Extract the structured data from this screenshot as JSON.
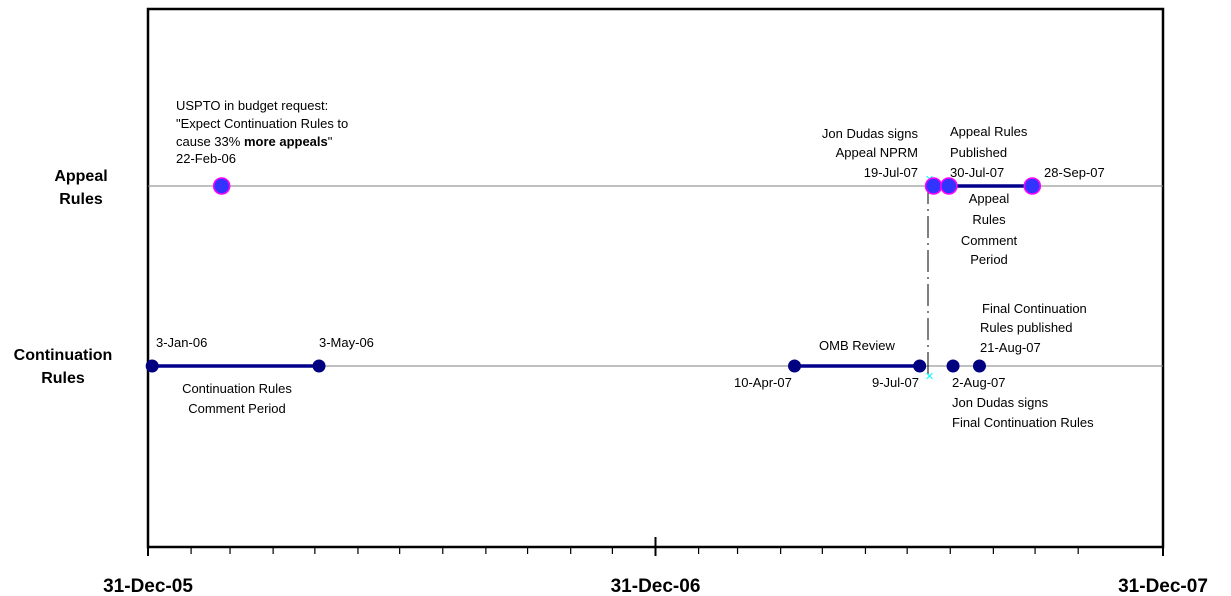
{
  "chart_data": {
    "type": "timeline",
    "x_axis": {
      "range": [
        "2005-12-31",
        "2007-12-31"
      ],
      "major_tick_labels": [
        "31-Dec-05",
        "31-Dec-06",
        "31-Dec-07"
      ]
    },
    "rows": [
      {
        "key": "appeal",
        "label_lines": [
          "Appeal",
          "Rules"
        ]
      },
      {
        "key": "continuation",
        "label_lines": [
          "Continuation",
          "Rules"
        ]
      }
    ],
    "events": [
      {
        "row": "appeal",
        "date": "2006-02-22",
        "label": "22-Feb-06",
        "note": "USPTO in budget request: \"Expect Continuation Rules to cause 33% more appeals\""
      },
      {
        "row": "appeal",
        "date": "2007-07-19",
        "label": "19-Jul-07",
        "note": "Jon Dudas signs Appeal NPRM"
      },
      {
        "row": "appeal",
        "date": "2007-07-30",
        "label": "30-Jul-07",
        "note": "Appeal Rules Published"
      },
      {
        "row": "appeal",
        "date": "2007-09-28",
        "label": "28-Sep-07",
        "note": ""
      },
      {
        "row": "continuation",
        "date": "2006-01-03",
        "label": "3-Jan-06",
        "note": ""
      },
      {
        "row": "continuation",
        "date": "2006-05-03",
        "label": "3-May-06",
        "note": ""
      },
      {
        "row": "continuation",
        "date": "2007-04-10",
        "label": "10-Apr-07",
        "note": ""
      },
      {
        "row": "continuation",
        "date": "2007-07-09",
        "label": "9-Jul-07",
        "note": ""
      },
      {
        "row": "continuation",
        "date": "2007-08-02",
        "label": "2-Aug-07",
        "note": "Jon Dudas signs Final Continuation Rules"
      },
      {
        "row": "continuation",
        "date": "2007-08-21",
        "label": "21-Aug-07",
        "note": "Final Continuation Rules published"
      }
    ],
    "periods": [
      {
        "row": "appeal",
        "start": "2007-07-30",
        "end": "2007-09-28",
        "label": "Appeal Rules Comment Period"
      },
      {
        "row": "continuation",
        "start": "2006-01-03",
        "end": "2006-05-03",
        "label": "Continuation Rules Comment Period"
      },
      {
        "row": "continuation",
        "start": "2007-04-10",
        "end": "2007-07-09",
        "label": "OMB Review"
      }
    ],
    "annotations": {
      "budget_line1": "USPTO in budget request:",
      "budget_line2": "\"Expect Continuation Rules to",
      "budget_line3_pre": "cause 33% ",
      "budget_line3_bold": "more appeals",
      "budget_line3_post": "\"",
      "appeal_nprm_line1": "Jon Dudas signs",
      "appeal_nprm_line2": "Appeal NPRM",
      "appeal_pub_line1": "Appeal Rules",
      "appeal_pub_line2": "Published",
      "appeal_comment_lines": [
        "Appeal",
        "Rules",
        "Comment",
        "Period"
      ],
      "cont_comment_line1": "Continuation Rules",
      "cont_comment_line2": "Comment Period",
      "omb_review": "OMB Review",
      "final_pub_line1": "Final Continuation",
      "final_pub_line2": "Rules published",
      "final_sign_line1": "Jon Dudas signs",
      "final_sign_line2": "Final Continuation Rules"
    },
    "colors": {
      "appeal_marker_fill": "#3333ff",
      "appeal_marker_edge": "#ff00ff",
      "continuation_marker": "#000080",
      "period_line": "#00008b",
      "axis": "#000000",
      "row_line": "#808080",
      "cursor_marker": "#00ffff"
    }
  }
}
